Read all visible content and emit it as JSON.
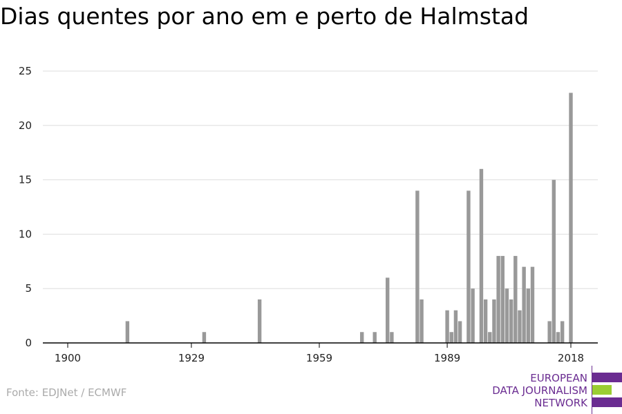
{
  "chart_data": {
    "type": "bar",
    "title": "Dias quentes por ano em e perto de Halmstad",
    "xlabel": "",
    "ylabel": "",
    "xlim": [
      1900,
      2018
    ],
    "ylim": [
      0,
      25
    ],
    "yticks": [
      0,
      5,
      10,
      15,
      20,
      25
    ],
    "xticks": [
      1900,
      1929,
      1959,
      1989,
      2018
    ],
    "grid": true,
    "bar_color": "#999999",
    "x": [
      1914,
      1932,
      1945,
      1969,
      1972,
      1975,
      1976,
      1982,
      1983,
      1989,
      1990,
      1991,
      1992,
      1994,
      1995,
      1997,
      1998,
      1999,
      2000,
      2001,
      2002,
      2003,
      2004,
      2005,
      2006,
      2007,
      2008,
      2009,
      2010,
      2013,
      2014,
      2015,
      2016,
      2018
    ],
    "values": [
      2,
      1,
      4,
      1,
      1,
      6,
      1,
      14,
      4,
      3,
      1,
      3,
      2,
      14,
      5,
      16,
      4,
      1,
      4,
      8,
      8,
      5,
      4,
      8,
      3,
      7,
      5,
      7,
      0,
      2,
      15,
      1,
      2,
      23
    ]
  },
  "source": "Fonte: EDJNet / ECMWF",
  "logo": {
    "line1": "EUROPEAN",
    "line2": "DATA JOURNALISM",
    "line3": "NETWORK",
    "purple": "#6a2c91",
    "green": "#9acd32"
  }
}
